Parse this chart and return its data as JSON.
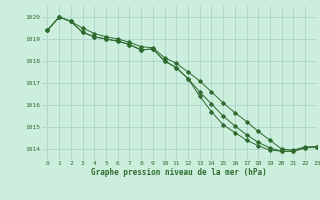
{
  "title": "Graphe pression niveau de la mer (hPa)",
  "bg_color": "#cceedd",
  "grid_color": "#aacccc",
  "line_color": "#2d6a2d",
  "xlim": [
    -0.5,
    23
  ],
  "ylim": [
    1013.5,
    1020.5
  ],
  "yticks": [
    1014,
    1015,
    1016,
    1017,
    1018,
    1019,
    1020
  ],
  "xticks": [
    0,
    1,
    2,
    3,
    4,
    5,
    6,
    7,
    8,
    9,
    10,
    11,
    12,
    13,
    14,
    15,
    16,
    17,
    18,
    19,
    20,
    21,
    22,
    23
  ],
  "series1": [
    1019.4,
    1020.0,
    1019.8,
    1019.5,
    1019.25,
    1019.1,
    1019.0,
    1018.85,
    1018.65,
    1018.6,
    1018.15,
    1017.9,
    1017.5,
    1017.1,
    1016.6,
    1016.1,
    1015.65,
    1015.25,
    1014.8,
    1014.4,
    1014.0,
    1013.95,
    1014.1,
    1014.1
  ],
  "series2": [
    1019.4,
    1020.0,
    1019.8,
    1019.3,
    1019.1,
    1019.0,
    1018.9,
    1018.75,
    1018.5,
    1018.55,
    1018.0,
    1017.7,
    1017.2,
    1016.6,
    1016.05,
    1015.5,
    1015.05,
    1014.65,
    1014.3,
    1014.05,
    1013.9,
    1013.9,
    1014.05,
    1014.1
  ],
  "series3": [
    1019.4,
    1020.0,
    1019.8,
    1019.3,
    1019.1,
    1019.0,
    1018.9,
    1018.75,
    1018.5,
    1018.55,
    1018.0,
    1017.7,
    1017.2,
    1016.4,
    1015.7,
    1015.1,
    1014.75,
    1014.4,
    1014.15,
    1013.95,
    1013.9,
    1013.9,
    1014.05,
    1014.1
  ]
}
